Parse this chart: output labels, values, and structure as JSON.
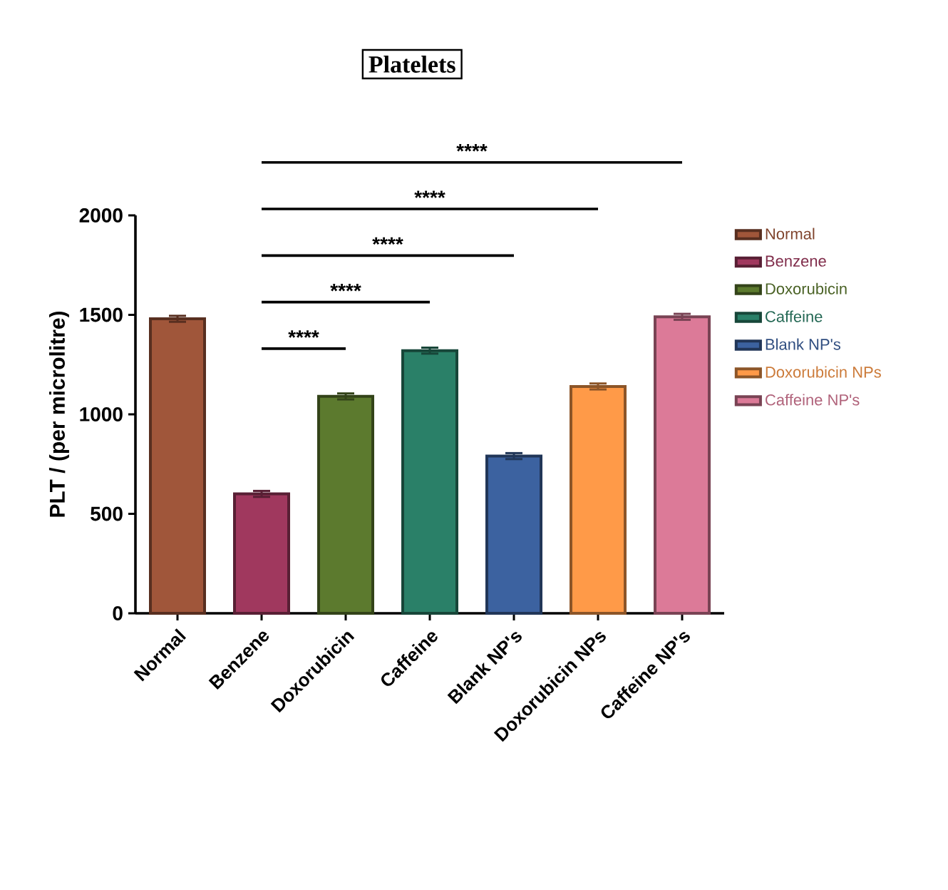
{
  "chart_data": {
    "type": "bar",
    "title": "Platelets",
    "ylabel": "PLT / (per microlitre)",
    "categories": [
      "Normal",
      "Benzene",
      "Doxorubicin",
      "Caffeine",
      "Blank NP's",
      "Doxorubicin NPs",
      "Caffeine NP's"
    ],
    "series": [
      {
        "name": "Normal",
        "color": "#a0563a",
        "values": [
          1480,
          null,
          null,
          null,
          null,
          null,
          null
        ],
        "errors": [
          15,
          null,
          null,
          null,
          null,
          null,
          null
        ]
      },
      {
        "name": "Benzene",
        "color": "#a0385e",
        "values": [
          null,
          600,
          null,
          null,
          null,
          null,
          null
        ],
        "errors": [
          null,
          15,
          null,
          null,
          null,
          null,
          null
        ]
      },
      {
        "name": "Doxorubicin",
        "color": "#5c7a2e",
        "values": [
          null,
          null,
          1090,
          null,
          null,
          null,
          null
        ],
        "errors": [
          null,
          null,
          15,
          null,
          null,
          null,
          null
        ]
      },
      {
        "name": "Caffeine",
        "color": "#2a8068",
        "values": [
          null,
          null,
          null,
          1320,
          null,
          null,
          null
        ],
        "errors": [
          null,
          null,
          null,
          15,
          null,
          null,
          null
        ]
      },
      {
        "name": "Blank NP's",
        "color": "#3c62a0",
        "values": [
          null,
          null,
          null,
          null,
          790,
          null,
          null
        ],
        "errors": [
          null,
          null,
          null,
          null,
          15,
          null,
          null
        ]
      },
      {
        "name": "Doxorubicin NPs",
        "color": "#ff9a48",
        "values": [
          null,
          null,
          null,
          null,
          null,
          1140,
          null
        ],
        "errors": [
          null,
          null,
          null,
          null,
          null,
          15,
          null
        ]
      },
      {
        "name": "Caffeine NP's",
        "color": "#dc7a98",
        "values": [
          null,
          null,
          null,
          null,
          null,
          null,
          1490
        ],
        "errors": [
          null,
          null,
          null,
          null,
          null,
          null,
          15
        ]
      }
    ],
    "ylim": [
      0,
      2000
    ],
    "yticks": [
      0,
      500,
      1000,
      1500,
      2000
    ],
    "legend": "right",
    "annotations": [
      "****",
      "****",
      "****",
      "****",
      "****"
    ]
  }
}
